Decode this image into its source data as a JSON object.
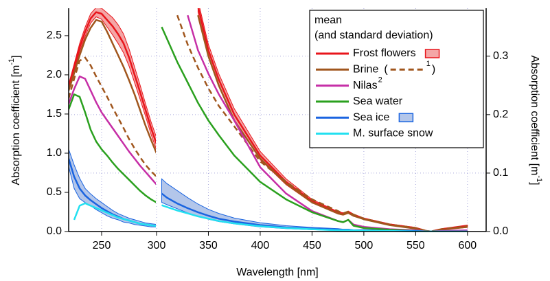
{
  "chart_data": [
    {
      "type": "line",
      "ylabel": {
        "text": "Absorption coefficient [m",
        "sup": "-1",
        "end": "]"
      },
      "xlim": [
        220,
        300
      ],
      "xticks": [
        250,
        300
      ],
      "ylim": [
        0,
        2.85
      ],
      "yticks": [
        {
          "value": 0,
          "label": "0.0"
        },
        {
          "value": 0.5,
          "label": "0.5"
        },
        {
          "value": 1,
          "label": "1.0"
        },
        {
          "value": 1.5,
          "label": "1.5"
        },
        {
          "value": 2,
          "label": "2.0"
        },
        {
          "value": 2.5,
          "label": "2.5"
        }
      ],
      "x": [
        220,
        225,
        230,
        235,
        240,
        245,
        250,
        255,
        260,
        265,
        270,
        275,
        280,
        285,
        290,
        295,
        300
      ],
      "series": [
        {
          "name": "Frost flowers",
          "color": "#e8151b",
          "band_color": "#f4a6a6",
          "values": [
            1.85,
            2.1,
            2.35,
            2.55,
            2.72,
            2.8,
            2.78,
            2.7,
            2.62,
            2.52,
            2.4,
            2.22,
            2.0,
            1.78,
            1.55,
            1.32,
            1.12
          ],
          "upper": [
            1.88,
            2.14,
            2.4,
            2.61,
            2.78,
            2.86,
            2.85,
            2.79,
            2.73,
            2.64,
            2.52,
            2.33,
            2.1,
            1.87,
            1.63,
            1.4,
            1.2
          ],
          "lower": [
            1.82,
            2.06,
            2.3,
            2.49,
            2.66,
            2.74,
            2.71,
            2.61,
            2.51,
            2.4,
            2.28,
            2.11,
            1.9,
            1.69,
            1.47,
            1.24,
            1.04
          ]
        },
        {
          "name": "Brine",
          "color": "#a0561d",
          "values": [
            1.8,
            2.02,
            2.25,
            2.45,
            2.6,
            2.7,
            2.68,
            2.55,
            2.4,
            2.25,
            2.1,
            1.93,
            1.75,
            1.55,
            1.35,
            1.17,
            1.0
          ]
        },
        {
          "name": "1",
          "color": "#a0561d",
          "dashed": true,
          "values": [
            1.7,
            1.95,
            2.18,
            2.22,
            2.12,
            1.98,
            1.85,
            1.72,
            1.58,
            1.45,
            1.32,
            1.18,
            1.06,
            0.95,
            0.85,
            0.77,
            0.7
          ]
        },
        {
          "name": "Nilas",
          "color": "#c62ea6",
          "values": [
            1.63,
            1.82,
            1.98,
            1.95,
            1.8,
            1.65,
            1.52,
            1.42,
            1.32,
            1.22,
            1.12,
            1.02,
            0.93,
            0.84,
            0.76,
            0.68,
            0.6
          ]
        },
        {
          "name": "Sea water",
          "color": "#2aa01e",
          "values": [
            1.56,
            1.75,
            1.72,
            1.52,
            1.3,
            1.15,
            1.05,
            0.97,
            0.88,
            0.8,
            0.73,
            0.66,
            0.59,
            0.52,
            0.46,
            0.41,
            0.37
          ]
        },
        {
          "name": "Sea ice",
          "color": "#1a64e0",
          "band_color": "#b3c6ea",
          "values": [
            0.93,
            0.7,
            0.55,
            0.46,
            0.4,
            0.35,
            0.3,
            0.26,
            0.22,
            0.19,
            0.16,
            0.14,
            0.12,
            0.1,
            0.09,
            0.08,
            0.07
          ],
          "upper": [
            1.05,
            0.85,
            0.68,
            0.55,
            0.48,
            0.42,
            0.37,
            0.32,
            0.27,
            0.23,
            0.2,
            0.17,
            0.15,
            0.13,
            0.11,
            0.1,
            0.09
          ],
          "lower": [
            0.83,
            0.55,
            0.42,
            0.37,
            0.33,
            0.28,
            0.24,
            0.2,
            0.17,
            0.15,
            0.12,
            0.11,
            0.09,
            0.08,
            0.07,
            0.06,
            0.06
          ]
        },
        {
          "name": "M. surface snow",
          "color": "#22e0f0",
          "values": [
            null,
            0.15,
            0.33,
            0.36,
            0.33,
            0.3,
            0.27,
            0.24,
            0.21,
            0.18,
            0.16,
            0.14,
            0.12,
            0.1,
            0.09,
            0.08,
            0.07
          ]
        }
      ]
    },
    {
      "type": "line",
      "xlabel": "Wavelength [nm]",
      "y2label": {
        "text": "Absorption coefficient [m",
        "sup": "-1",
        "end": "]"
      },
      "xlim": [
        300,
        618
      ],
      "xticks": [
        350,
        400,
        450,
        500,
        550,
        600
      ],
      "y2lim": [
        0,
        0.382
      ],
      "y2ticks": [
        {
          "value": 0,
          "label": "0.0"
        },
        {
          "value": 0.1,
          "label": "0.1"
        },
        {
          "value": 0.2,
          "label": "0.2"
        },
        {
          "value": 0.3,
          "label": "0.3"
        }
      ],
      "grid": true,
      "legend": {
        "title": [
          "mean",
          "(and standard deviation)"
        ],
        "brackets": [
          "(",
          ")"
        ],
        "notes": {
          "Nilas": "2"
        },
        "corner": "upper right"
      },
      "x": [
        305,
        310,
        320,
        330,
        340,
        350,
        360,
        375,
        400,
        425,
        450,
        475,
        480,
        485,
        490,
        500,
        525,
        550,
        560,
        565,
        575,
        600
      ],
      "series": [
        {
          "name": "Frost flowers",
          "color": "#e8151b",
          "band_color": "#f4a6a6",
          "axis": "y2",
          "values": [
            null,
            null,
            null,
            null,
            0.385,
            0.31,
            0.26,
            0.2,
            0.13,
            0.085,
            0.052,
            0.032,
            0.03,
            0.033,
            0.028,
            0.022,
            0.012,
            0.006,
            0.001,
            0,
            0.004,
            0.009
          ],
          "upper": [
            null,
            null,
            null,
            null,
            0.395,
            0.32,
            0.27,
            0.21,
            0.137,
            0.09,
            0.055,
            0.034,
            0.032,
            0.035,
            0.03,
            0.023,
            0.013,
            0.007,
            0.002,
            0.001,
            0.005,
            0.011
          ],
          "lower": [
            null,
            null,
            null,
            null,
            0.375,
            0.3,
            0.25,
            0.19,
            0.123,
            0.08,
            0.049,
            0.03,
            0.028,
            0.031,
            0.026,
            0.021,
            0.011,
            0.005,
            0,
            -0.001,
            0.003,
            0.007
          ]
        },
        {
          "name": "Brine",
          "color": "#a0561d",
          "axis": "y2",
          "values": [
            null,
            null,
            null,
            null,
            0.37,
            0.3,
            0.25,
            0.19,
            0.125,
            0.082,
            0.05,
            0.031,
            0.029,
            0.032,
            0.027,
            0.021,
            0.011,
            0.005,
            0.001,
            0,
            0.003,
            0.008
          ]
        },
        {
          "name": "1",
          "color": "#a0561d",
          "dashed": true,
          "axis": "y2",
          "values": [
            null,
            null,
            0.37,
            0.32,
            0.28,
            0.245,
            0.215,
            0.18,
            0.12,
            0.085,
            0.055,
            0.035,
            0.031,
            0.034,
            0.029,
            0.022,
            0.012,
            0.006,
            0.001,
            0,
            0.004,
            0.009
          ]
        },
        {
          "name": "Nilas",
          "color": "#c62ea6",
          "axis": "y2",
          "values": [
            null,
            null,
            null,
            0.37,
            0.31,
            0.27,
            0.235,
            0.19,
            0.11,
            0.065,
            0.035,
            0.018,
            0.016,
            0.02,
            0.012,
            0.008,
            0.004,
            0.002,
            0,
            0,
            0.001,
            0.002
          ]
        },
        {
          "name": "Sea water",
          "color": "#2aa01e",
          "axis": "y2",
          "values": [
            0.35,
            0.33,
            0.29,
            0.255,
            0.22,
            0.19,
            0.165,
            0.13,
            0.085,
            0.055,
            0.033,
            0.018,
            0.016,
            0.02,
            0.01,
            0.006,
            0.003,
            0.001,
            0,
            0,
            0,
            0
          ]
        },
        {
          "name": "Sea ice",
          "color": "#1a64e0",
          "band_color": "#b3c6ea",
          "axis": "y2",
          "values": [
            0.065,
            0.058,
            0.048,
            0.04,
            0.033,
            0.027,
            0.022,
            0.017,
            0.011,
            0.007,
            0.005,
            0.003,
            0.003,
            0.003,
            0.002,
            0.002,
            0.001,
            0.001,
            0,
            0,
            0,
            0
          ],
          "upper": [
            0.09,
            0.082,
            0.07,
            0.058,
            0.047,
            0.038,
            0.031,
            0.023,
            0.015,
            0.01,
            0.007,
            0.005,
            0.004,
            0.004,
            0.003,
            0.003,
            0.002,
            0.001,
            0.001,
            0.001,
            0.001,
            0.001
          ],
          "lower": [
            0.05,
            0.046,
            0.039,
            0.032,
            0.026,
            0.021,
            0.017,
            0.013,
            0.008,
            0.005,
            0.003,
            0.002,
            0.002,
            0.002,
            0.001,
            0.001,
            0,
            0,
            0,
            0,
            0,
            0
          ]
        },
        {
          "name": "M. surface snow",
          "color": "#22e0f0",
          "axis": "y2",
          "values": [
            0.045,
            0.042,
            0.036,
            0.031,
            0.026,
            0.022,
            0.018,
            0.014,
            0.009,
            0.006,
            0.004,
            0.002,
            0.002,
            0.002,
            0.002,
            0.001,
            0.001,
            0,
            0,
            0,
            0,
            0
          ]
        }
      ]
    }
  ]
}
